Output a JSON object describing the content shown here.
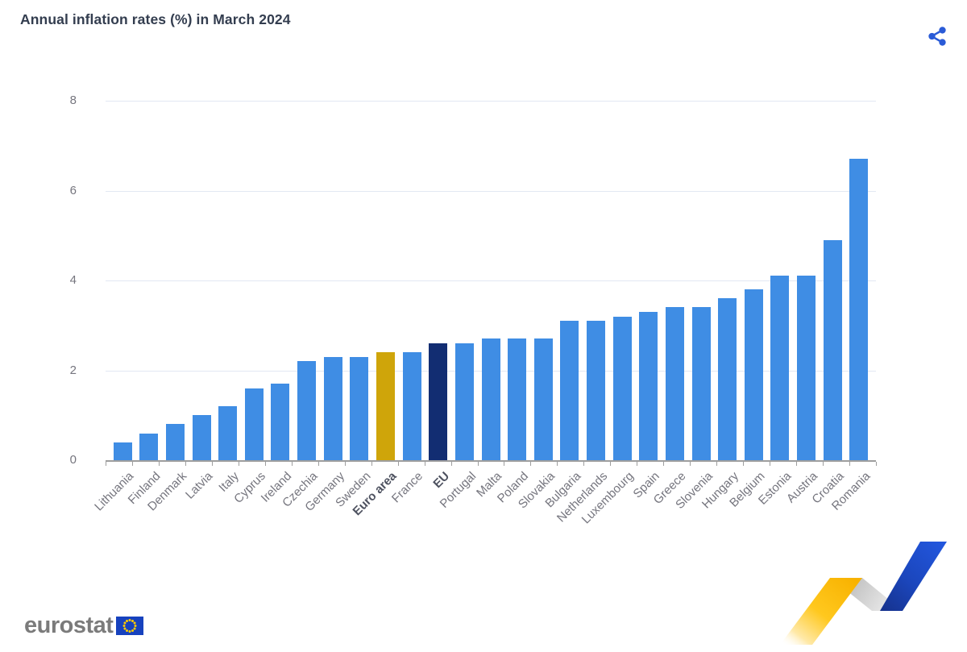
{
  "header": {
    "title": "Annual inflation rates (%) in March 2024"
  },
  "toolbar": {
    "share_icon": "share-icon",
    "share_color": "#2a5bd7"
  },
  "chart_data": {
    "type": "bar",
    "title": "Annual inflation rates (%) in March 2024",
    "categories": [
      "Lithuania",
      "Finland",
      "Denmark",
      "Latvia",
      "Italy",
      "Cyprus",
      "Ireland",
      "Czechia",
      "Germany",
      "Sweden",
      "Euro area",
      "France",
      "EU",
      "Portugal",
      "Malta",
      "Poland",
      "Slovakia",
      "Bulgaria",
      "Netherlands",
      "Luxembourg",
      "Spain",
      "Greece",
      "Slovenia",
      "Hungary",
      "Belgium",
      "Estonia",
      "Austria",
      "Croatia",
      "Romania"
    ],
    "values": [
      0.4,
      0.6,
      0.8,
      1.0,
      1.2,
      1.6,
      1.7,
      2.2,
      2.3,
      2.3,
      2.4,
      2.4,
      2.6,
      2.6,
      2.7,
      2.7,
      2.7,
      3.1,
      3.1,
      3.2,
      3.3,
      3.4,
      3.4,
      3.6,
      3.8,
      4.1,
      4.1,
      4.9,
      6.7
    ],
    "bold_categories": [
      "Euro area",
      "EU"
    ],
    "bar_color": "#3f8de4",
    "highlight_colors": {
      "Euro area": "#cfa50a",
      "EU": "#122d72"
    },
    "ylim": [
      0,
      8
    ],
    "yticks": [
      0,
      2,
      4,
      6,
      8
    ],
    "grid": true,
    "legend": "none",
    "gridline_color": "#e2e8f3",
    "axis_color": "#9e9e9e"
  },
  "footer": {
    "logo_text": "eurostat",
    "flag_icon": "eu-flag-icon",
    "ribbon_icon": "eurostat-ribbon"
  }
}
